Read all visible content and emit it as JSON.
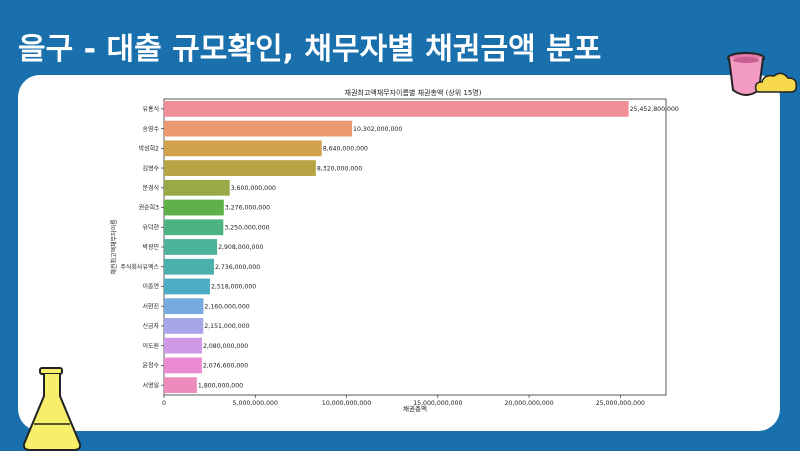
{
  "slide": {
    "title": "을구 - 대출 규모확인, 채무자별 채권금액 분포"
  },
  "colors": {
    "background": "#1a6fad",
    "panel": "#ffffff",
    "beaker": "#f29ac1",
    "flask": "#f7ee6a",
    "cloud": "#f7d84a"
  },
  "chart_data": {
    "type": "bar",
    "orientation": "horizontal",
    "title": "채권최고액채무자이름별 채권총액 (상위 15명)",
    "xlabel": "채권총액",
    "ylabel": "채권최고액채무자이름",
    "xlim": [
      0,
      27500000000
    ],
    "xticks": [
      0,
      5000000000,
      10000000000,
      15000000000,
      20000000000,
      25000000000
    ],
    "xtick_labels": [
      "0",
      "5,000,000,000",
      "10,000,000,000",
      "15,000,000,000",
      "20,000,000,000",
      "25,000,000,000"
    ],
    "grid": false,
    "categories": [
      "유홍식",
      "송영수",
      "박성희2",
      "김영수",
      "문경식",
      "권순희3",
      "유덕현",
      "박광민",
      "주식회사유엑스",
      "이종연",
      "서현진",
      "신금자",
      "이도원",
      "윤정수",
      "서영일"
    ],
    "values": [
      25452800000,
      10302000000,
      8640000000,
      8320000000,
      3600000000,
      3276000000,
      3250000000,
      2908000000,
      2736000000,
      2518000000,
      2160000000,
      2151000000,
      2080000000,
      2076600000,
      1800000000
    ],
    "value_labels": [
      "25,452,800,000",
      "10,302,000,000",
      "8,640,000,000",
      "8,320,000,000",
      "3,600,000,000",
      "3,276,000,000",
      "3,250,000,000",
      "2,908,000,000",
      "2,736,000,000",
      "2,518,000,000",
      "2,160,000,000",
      "2,151,000,000",
      "2,080,000,000",
      "2,076,600,000",
      "1,800,000,000"
    ],
    "bar_colors": [
      "#ef8e97",
      "#e9986f",
      "#d1a04b",
      "#b7a445",
      "#98a946",
      "#5fb048",
      "#4db383",
      "#4cb29a",
      "#4ab0ab",
      "#4caec4",
      "#77aae0",
      "#a8a6e8",
      "#cf99e8",
      "#ec89d3",
      "#ee8bbd"
    ]
  }
}
